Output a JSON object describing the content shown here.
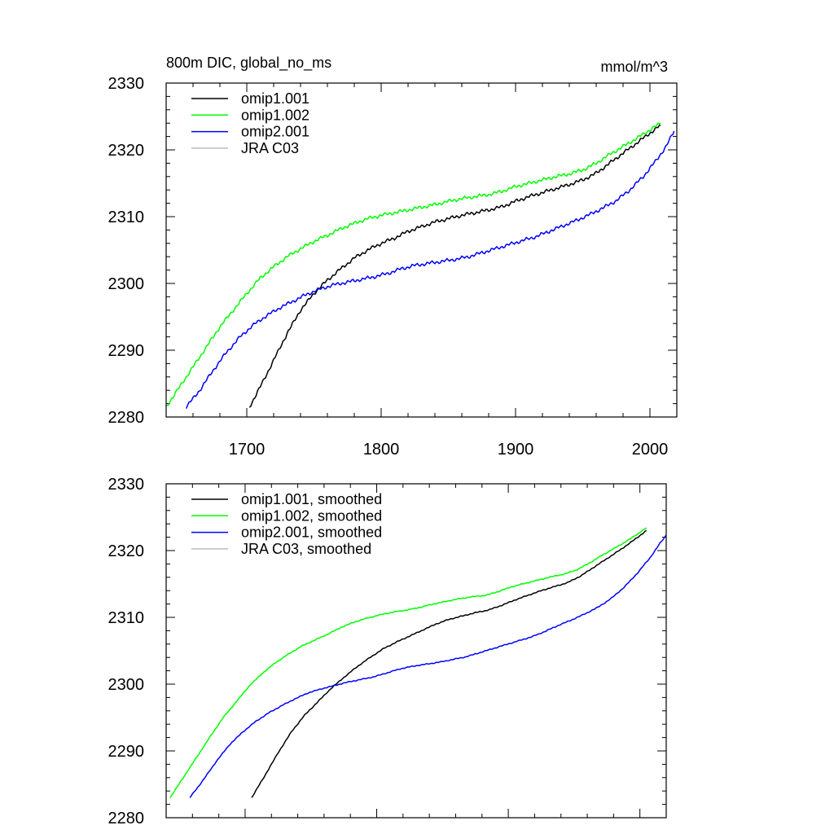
{
  "chart_data": [
    {
      "type": "line",
      "title": "800m DIC, global_no_ms",
      "units": "mmol/m^3",
      "xlim": [
        1640,
        2020
      ],
      "ylim": [
        2280,
        2330
      ],
      "xticks": [
        1700,
        1800,
        1900,
        2000
      ],
      "yticks": [
        2280,
        2290,
        2300,
        2310,
        2320,
        2330
      ],
      "legend_position": "top-left",
      "series": [
        {
          "name": "omip1.001",
          "color": "#000000",
          "jitter": 0.3,
          "points": [
            [
              1702,
              2281.5
            ],
            [
              1710,
              2284.5
            ],
            [
              1720,
              2288.5
            ],
            [
              1730,
              2292.5
            ],
            [
              1740,
              2296
            ],
            [
              1750,
              2298.5
            ],
            [
              1760,
              2300.5
            ],
            [
              1770,
              2302.2
            ],
            [
              1780,
              2303.8
            ],
            [
              1790,
              2305
            ],
            [
              1800,
              2306
            ],
            [
              1810,
              2306.8
            ],
            [
              1820,
              2307.8
            ],
            [
              1830,
              2308.5
            ],
            [
              1840,
              2309.2
            ],
            [
              1850,
              2309.7
            ],
            [
              1860,
              2310.2
            ],
            [
              1870,
              2310.6
            ],
            [
              1880,
              2311
            ],
            [
              1890,
              2311.5
            ],
            [
              1900,
              2312.3
            ],
            [
              1910,
              2313
            ],
            [
              1920,
              2313.6
            ],
            [
              1930,
              2314.2
            ],
            [
              1940,
              2314.8
            ],
            [
              1950,
              2315.5
            ],
            [
              1960,
              2316.5
            ],
            [
              1970,
              2318
            ],
            [
              1980,
              2319.5
            ],
            [
              1990,
              2321
            ],
            [
              2000,
              2322.5
            ],
            [
              2008,
              2323.7
            ]
          ]
        },
        {
          "name": "omip1.002",
          "color": "#00ff00",
          "jitter": 0.3,
          "points": [
            [
              1640,
              2281.5
            ],
            [
              1650,
              2284.5
            ],
            [
              1660,
              2287.5
            ],
            [
              1670,
              2290.5
            ],
            [
              1680,
              2293.5
            ],
            [
              1690,
              2296
            ],
            [
              1700,
              2298.5
            ],
            [
              1710,
              2300.8
            ],
            [
              1720,
              2302.5
            ],
            [
              1730,
              2304
            ],
            [
              1740,
              2305.2
            ],
            [
              1750,
              2306.3
            ],
            [
              1760,
              2307.2
            ],
            [
              1770,
              2308.2
            ],
            [
              1780,
              2309
            ],
            [
              1790,
              2309.7
            ],
            [
              1800,
              2310.2
            ],
            [
              1810,
              2310.6
            ],
            [
              1820,
              2311
            ],
            [
              1830,
              2311.4
            ],
            [
              1840,
              2311.8
            ],
            [
              1850,
              2312.3
            ],
            [
              1860,
              2312.7
            ],
            [
              1870,
              2313
            ],
            [
              1880,
              2313.3
            ],
            [
              1890,
              2313.8
            ],
            [
              1900,
              2314.5
            ],
            [
              1910,
              2315
            ],
            [
              1920,
              2315.5
            ],
            [
              1930,
              2316
            ],
            [
              1940,
              2316.4
            ],
            [
              1950,
              2317
            ],
            [
              1960,
              2318
            ],
            [
              1970,
              2319.3
            ],
            [
              1980,
              2320.5
            ],
            [
              1990,
              2321.7
            ],
            [
              2000,
              2323
            ],
            [
              2008,
              2324
            ]
          ]
        },
        {
          "name": "omip2.001",
          "color": "#0000ff",
          "jitter": 0.3,
          "points": [
            [
              1655,
              2281.5
            ],
            [
              1665,
              2284
            ],
            [
              1675,
              2287
            ],
            [
              1685,
              2289.7
            ],
            [
              1695,
              2292
            ],
            [
              1705,
              2293.8
            ],
            [
              1715,
              2295.2
            ],
            [
              1725,
              2296.4
            ],
            [
              1735,
              2297.4
            ],
            [
              1745,
              2298.4
            ],
            [
              1755,
              2299.2
            ],
            [
              1765,
              2299.8
            ],
            [
              1775,
              2300.2
            ],
            [
              1785,
              2300.6
            ],
            [
              1795,
              2301
            ],
            [
              1805,
              2301.5
            ],
            [
              1815,
              2302.2
            ],
            [
              1825,
              2302.7
            ],
            [
              1835,
              2303
            ],
            [
              1845,
              2303.3
            ],
            [
              1855,
              2303.6
            ],
            [
              1865,
              2304
            ],
            [
              1875,
              2304.6
            ],
            [
              1885,
              2305.2
            ],
            [
              1895,
              2305.8
            ],
            [
              1905,
              2306.4
            ],
            [
              1915,
              2307
            ],
            [
              1925,
              2307.8
            ],
            [
              1935,
              2308.6
            ],
            [
              1945,
              2309.4
            ],
            [
              1955,
              2310.3
            ],
            [
              1965,
              2311.3
            ],
            [
              1975,
              2312.4
            ],
            [
              1985,
              2314
            ],
            [
              1995,
              2316
            ],
            [
              2005,
              2318.5
            ],
            [
              2012,
              2320.5
            ],
            [
              2018,
              2322.8
            ]
          ]
        },
        {
          "name": "JRA C03",
          "color": "#bbbbbb",
          "points": []
        }
      ]
    },
    {
      "type": "line",
      "xlim": [
        1640,
        2020
      ],
      "ylim": [
        2280,
        2330
      ],
      "xticks": [
        1700,
        1800,
        1900,
        2000
      ],
      "yticks": [
        2280,
        2290,
        2300,
        2310,
        2320,
        2330
      ],
      "legend_position": "top-left",
      "series": [
        {
          "name": "omip1.001, smoothed",
          "color": "#000000",
          "jitter": 0.08,
          "points": [
            [
              1705,
              2283
            ],
            [
              1715,
              2286.3
            ],
            [
              1725,
              2289.7
            ],
            [
              1735,
              2292.8
            ],
            [
              1745,
              2295.3
            ],
            [
              1755,
              2297.3
            ],
            [
              1765,
              2299.3
            ],
            [
              1775,
              2301
            ],
            [
              1785,
              2302.6
            ],
            [
              1795,
              2304
            ],
            [
              1805,
              2305.3
            ],
            [
              1815,
              2306.3
            ],
            [
              1825,
              2307.2
            ],
            [
              1835,
              2308.1
            ],
            [
              1845,
              2309
            ],
            [
              1855,
              2309.7
            ],
            [
              1865,
              2310.2
            ],
            [
              1875,
              2310.7
            ],
            [
              1885,
              2311.1
            ],
            [
              1895,
              2311.8
            ],
            [
              1905,
              2312.6
            ],
            [
              1915,
              2313.3
            ],
            [
              1925,
              2314
            ],
            [
              1935,
              2314.6
            ],
            [
              1945,
              2315.2
            ],
            [
              1955,
              2316.2
            ],
            [
              1965,
              2317.5
            ],
            [
              1975,
              2318.8
            ],
            [
              1985,
              2320.1
            ],
            [
              1995,
              2321.5
            ],
            [
              2005,
              2323
            ]
          ]
        },
        {
          "name": "omip1.002, smoothed",
          "color": "#00ff00",
          "jitter": 0.08,
          "points": [
            [
              1643,
              2283
            ],
            [
              1653,
              2286
            ],
            [
              1663,
              2289
            ],
            [
              1673,
              2292
            ],
            [
              1683,
              2294.9
            ],
            [
              1693,
              2297.3
            ],
            [
              1703,
              2299.7
            ],
            [
              1713,
              2301.6
            ],
            [
              1723,
              2303.2
            ],
            [
              1733,
              2304.5
            ],
            [
              1743,
              2305.7
            ],
            [
              1753,
              2306.6
            ],
            [
              1763,
              2307.5
            ],
            [
              1773,
              2308.5
            ],
            [
              1783,
              2309.3
            ],
            [
              1793,
              2309.9
            ],
            [
              1803,
              2310.4
            ],
            [
              1813,
              2310.8
            ],
            [
              1823,
              2311.1
            ],
            [
              1833,
              2311.5
            ],
            [
              1843,
              2312
            ],
            [
              1853,
              2312.4
            ],
            [
              1863,
              2312.8
            ],
            [
              1873,
              2313.1
            ],
            [
              1883,
              2313.3
            ],
            [
              1893,
              2313.9
            ],
            [
              1903,
              2314.6
            ],
            [
              1913,
              2315.1
            ],
            [
              1923,
              2315.6
            ],
            [
              1933,
              2316.1
            ],
            [
              1943,
              2316.5
            ],
            [
              1953,
              2317.2
            ],
            [
              1963,
              2318.3
            ],
            [
              1973,
              2319.5
            ],
            [
              1983,
              2320.6
            ],
            [
              1993,
              2321.8
            ],
            [
              2005,
              2323.4
            ]
          ]
        },
        {
          "name": "omip2.001, smoothed",
          "color": "#0000ff",
          "jitter": 0.08,
          "points": [
            [
              1658,
              2283
            ],
            [
              1668,
              2285.6
            ],
            [
              1678,
              2288.4
            ],
            [
              1688,
              2290.9
            ],
            [
              1698,
              2292.8
            ],
            [
              1708,
              2294.4
            ],
            [
              1718,
              2295.7
            ],
            [
              1728,
              2296.8
            ],
            [
              1738,
              2297.8
            ],
            [
              1748,
              2298.7
            ],
            [
              1758,
              2299.3
            ],
            [
              1768,
              2299.8
            ],
            [
              1778,
              2300.3
            ],
            [
              1788,
              2300.7
            ],
            [
              1798,
              2301.1
            ],
            [
              1808,
              2301.7
            ],
            [
              1818,
              2302.3
            ],
            [
              1828,
              2302.7
            ],
            [
              1838,
              2303
            ],
            [
              1848,
              2303.3
            ],
            [
              1858,
              2303.7
            ],
            [
              1868,
              2304.1
            ],
            [
              1878,
              2304.7
            ],
            [
              1888,
              2305.3
            ],
            [
              1898,
              2305.9
            ],
            [
              1908,
              2306.5
            ],
            [
              1918,
              2307.1
            ],
            [
              1928,
              2307.9
            ],
            [
              1938,
              2308.8
            ],
            [
              1948,
              2309.6
            ],
            [
              1958,
              2310.5
            ],
            [
              1968,
              2311.5
            ],
            [
              1978,
              2312.8
            ],
            [
              1988,
              2314.5
            ],
            [
              1998,
              2316.6
            ],
            [
              2008,
              2319
            ],
            [
              2015,
              2321
            ],
            [
              2020,
              2322.3
            ]
          ]
        },
        {
          "name": "JRA C03, smoothed",
          "color": "#bbbbbb",
          "points": []
        }
      ]
    }
  ]
}
